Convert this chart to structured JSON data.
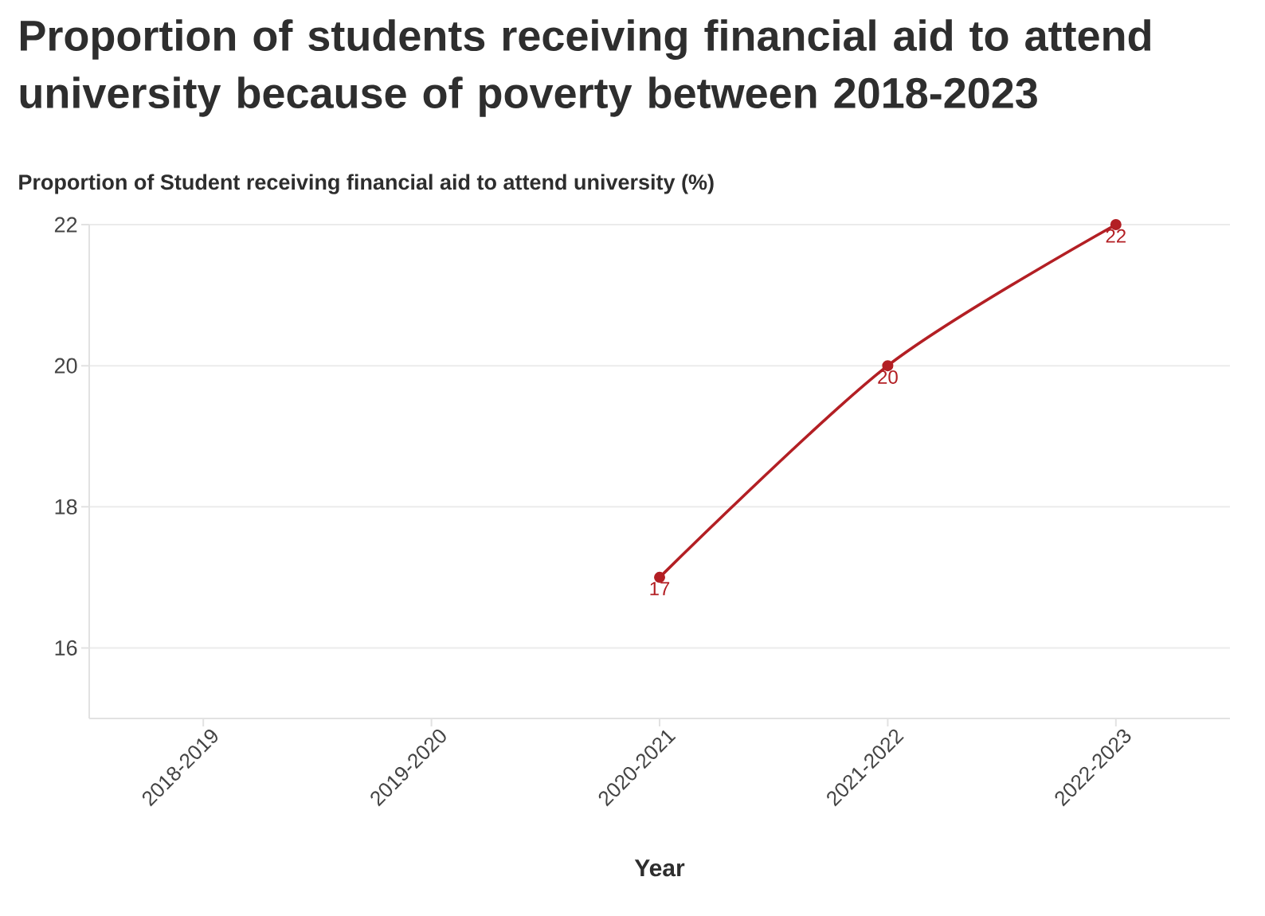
{
  "chart_data": {
    "type": "line",
    "title": "Proportion of students receiving financial aid to attend university because of poverty between 2018-2023",
    "ylabel": "Proportion of Student receiving financial aid to attend university (%)",
    "xlabel": "Year",
    "categories": [
      "2018-2019",
      "2019-2020",
      "2020-2021",
      "2021-2022",
      "2022-2023"
    ],
    "series": [
      {
        "color": "#b31f24",
        "values": [
          null,
          null,
          17,
          20,
          22
        ]
      }
    ],
    "ylim": [
      15,
      22
    ],
    "yticks": [
      16,
      18,
      20,
      22
    ],
    "grid": "y",
    "marker": "circle",
    "line_style": "solid",
    "data_labels": true
  }
}
